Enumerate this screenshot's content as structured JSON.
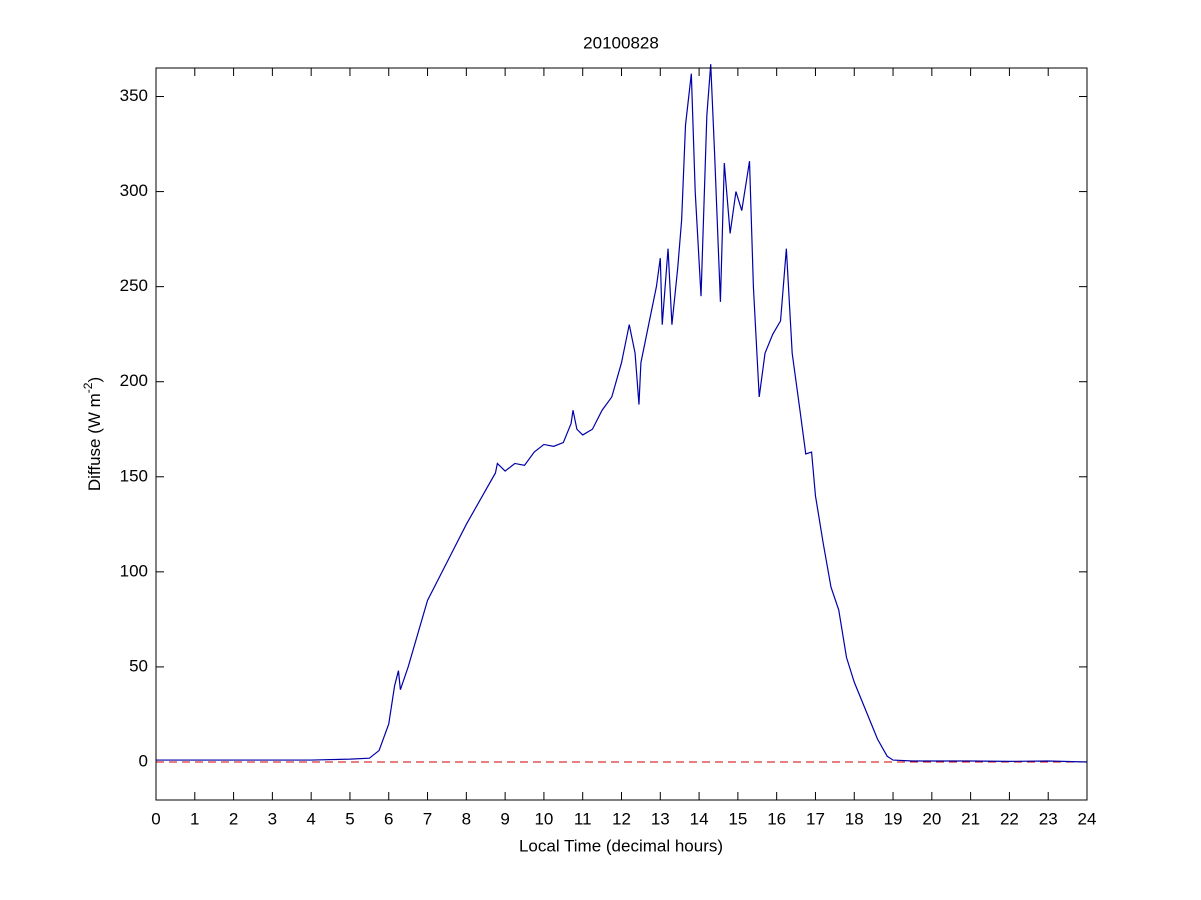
{
  "chart_data": {
    "type": "line",
    "title": "20100828",
    "xlabel": "Local Time (decimal hours)",
    "ylabel": {
      "text": "Diffuse (W m",
      "superscript": "-2",
      "suffix": ")"
    },
    "xlim": [
      0,
      24
    ],
    "ylim": [
      -20,
      365
    ],
    "xticks": [
      0,
      1,
      2,
      3,
      4,
      5,
      6,
      7,
      8,
      9,
      10,
      11,
      12,
      13,
      14,
      15,
      16,
      17,
      18,
      19,
      20,
      21,
      22,
      23,
      24
    ],
    "yticks": [
      0,
      50,
      100,
      150,
      200,
      250,
      300,
      350
    ],
    "reference_line": {
      "value": 0,
      "color": "#cc0000",
      "style": "dashed"
    },
    "x": [
      0,
      1,
      2,
      3,
      4,
      5,
      5.5,
      5.75,
      6,
      6.15,
      6.25,
      6.3,
      6.5,
      7,
      7.5,
      8,
      8.5,
      8.75,
      8.8,
      9,
      9.25,
      9.5,
      9.75,
      10,
      10.25,
      10.5,
      10.7,
      10.75,
      10.85,
      11,
      11.25,
      11.5,
      11.75,
      12,
      12.1,
      12.2,
      12.35,
      12.45,
      12.5,
      12.7,
      12.9,
      13,
      13.05,
      13.2,
      13.3,
      13.45,
      13.55,
      13.65,
      13.8,
      13.9,
      14.05,
      14.2,
      14.3,
      14.4,
      14.55,
      14.65,
      14.8,
      14.95,
      15.1,
      15.3,
      15.4,
      15.55,
      15.7,
      15.9,
      16.1,
      16.25,
      16.4,
      16.6,
      16.75,
      16.9,
      17,
      17.2,
      17.4,
      17.6,
      17.8,
      18,
      18.3,
      18.6,
      18.85,
      19,
      19.5,
      20,
      21,
      22,
      23,
      24
    ],
    "series": [
      {
        "color": "#0000aa",
        "values": [
          1,
          1,
          1,
          1,
          1,
          1.5,
          2,
          6,
          20,
          40,
          48,
          38,
          50,
          85,
          105,
          125,
          143,
          152,
          157,
          153,
          157,
          156,
          163,
          167,
          166,
          168,
          178,
          185,
          175,
          172,
          175,
          185,
          192,
          210,
          220,
          230,
          215,
          188,
          210,
          230,
          250,
          265,
          230,
          270,
          230,
          260,
          285,
          335,
          362,
          300,
          245,
          340,
          367,
          320,
          242,
          315,
          278,
          300,
          290,
          316,
          250,
          192,
          215,
          225,
          232,
          270,
          215,
          185,
          162,
          163,
          140,
          115,
          92,
          80,
          55,
          42,
          27,
          12,
          3,
          1,
          0.5,
          0.5,
          0.5,
          0.3,
          0.5,
          0
        ]
      }
    ]
  }
}
